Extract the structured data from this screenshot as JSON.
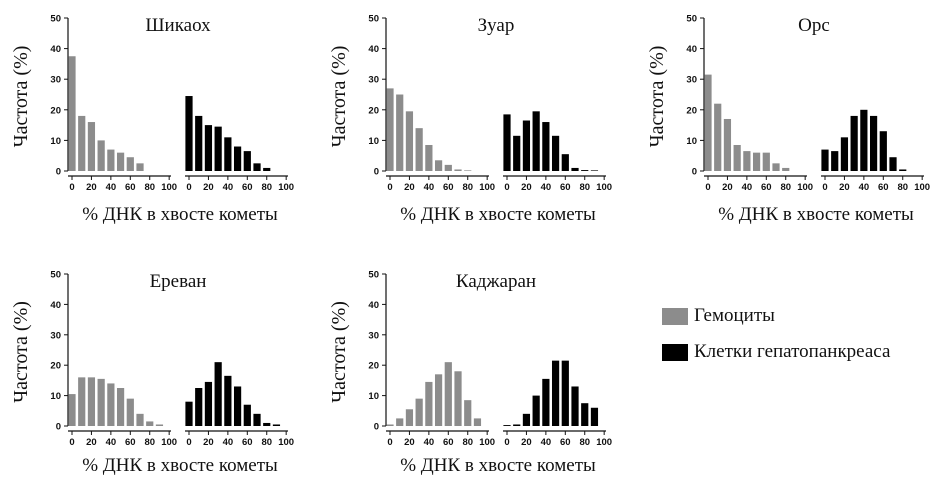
{
  "legend": {
    "items": [
      {
        "label": "Гемоциты",
        "color": "#8c8c8c"
      },
      {
        "label": "Клетки гепатопанкреаса",
        "color": "#000000"
      }
    ]
  },
  "chart_data": [
    {
      "type": "bar",
      "title": "Шикаох",
      "xlabel": "% ДНК в хвосте кометы",
      "ylabel": "Частота (%)",
      "ylim": [
        0,
        50
      ],
      "yticks": [
        0,
        10,
        20,
        30,
        40,
        50
      ],
      "categories": [
        "0",
        "10",
        "20",
        "30",
        "40",
        "50",
        "60",
        "70",
        "80",
        "90",
        "100"
      ],
      "xticks": [
        "0",
        "20",
        "40",
        "60",
        "80",
        "100"
      ],
      "series": [
        {
          "name": "Гемоциты",
          "color": "#8c8c8c",
          "values": [
            37.5,
            18,
            16,
            10,
            7,
            6,
            4.5,
            2.5,
            0,
            0,
            0
          ]
        },
        {
          "name": "Клетки гепатопанкреаса",
          "color": "#000000",
          "values": [
            24.5,
            18,
            15,
            14.5,
            11,
            8,
            6.5,
            2.5,
            1,
            0,
            0
          ]
        }
      ]
    },
    {
      "type": "bar",
      "title": "Зуар",
      "xlabel": "% ДНК в хвосте кометы",
      "ylabel": "Частота (%)",
      "ylim": [
        0,
        50
      ],
      "yticks": [
        0,
        10,
        20,
        30,
        40,
        50
      ],
      "categories": [
        "0",
        "10",
        "20",
        "30",
        "40",
        "50",
        "60",
        "70",
        "80",
        "90",
        "100"
      ],
      "xticks": [
        "0",
        "20",
        "40",
        "60",
        "80",
        "100"
      ],
      "series": [
        {
          "name": "Гемоциты",
          "color": "#8c8c8c",
          "values": [
            27,
            25,
            19.5,
            14,
            8.5,
            3.5,
            2,
            0.5,
            0.2,
            0,
            0
          ]
        },
        {
          "name": "Клетки гепатопанкреаса",
          "color": "#000000",
          "values": [
            18.5,
            11.5,
            16.5,
            19.5,
            16,
            11.5,
            5.5,
            1,
            0.3,
            0.2,
            0
          ]
        }
      ]
    },
    {
      "type": "bar",
      "title": "Орс",
      "xlabel": "% ДНК в хвосте кометы",
      "ylabel": "Частота (%)",
      "ylim": [
        0,
        50
      ],
      "yticks": [
        0,
        10,
        20,
        30,
        40,
        50
      ],
      "categories": [
        "0",
        "10",
        "20",
        "30",
        "40",
        "50",
        "60",
        "70",
        "80",
        "90",
        "100"
      ],
      "xticks": [
        "0",
        "20",
        "40",
        "60",
        "80",
        "100"
      ],
      "series": [
        {
          "name": "Гемоциты",
          "color": "#8c8c8c",
          "values": [
            31.5,
            22,
            17,
            8.5,
            6.5,
            6,
            6,
            2.5,
            1,
            0,
            0
          ]
        },
        {
          "name": "Клетки гепатопанкреаса",
          "color": "#000000",
          "values": [
            7,
            6.5,
            11,
            18,
            20,
            18,
            13,
            4.5,
            0.5,
            0,
            0
          ]
        }
      ]
    },
    {
      "type": "bar",
      "title": "Ереван",
      "xlabel": "% ДНК в хвосте кометы",
      "ylabel": "Частота (%)",
      "ylim": [
        0,
        50
      ],
      "yticks": [
        0,
        10,
        20,
        30,
        40,
        50
      ],
      "categories": [
        "0",
        "10",
        "20",
        "30",
        "40",
        "50",
        "60",
        "70",
        "80",
        "90",
        "100"
      ],
      "xticks": [
        "0",
        "20",
        "40",
        "60",
        "80",
        "100"
      ],
      "series": [
        {
          "name": "Гемоциты",
          "color": "#8c8c8c",
          "values": [
            10.5,
            16,
            16,
            15.5,
            14,
            12.5,
            9,
            4,
            1.5,
            0.5,
            0
          ]
        },
        {
          "name": "Клетки гепатопанкреаса",
          "color": "#000000",
          "values": [
            8,
            12.5,
            14.5,
            21,
            16.5,
            13,
            7,
            4,
            1,
            0.5,
            0
          ]
        }
      ]
    },
    {
      "type": "bar",
      "title": "Каджаран",
      "xlabel": "% ДНК в хвосте кометы",
      "ylabel": "Частота (%)",
      "ylim": [
        0,
        50
      ],
      "yticks": [
        0,
        10,
        20,
        30,
        40,
        50
      ],
      "categories": [
        "0",
        "10",
        "20",
        "30",
        "40",
        "50",
        "60",
        "70",
        "80",
        "90",
        "100"
      ],
      "xticks": [
        "0",
        "20",
        "40",
        "60",
        "80",
        "100"
      ],
      "series": [
        {
          "name": "Гемоциты",
          "color": "#8c8c8c",
          "values": [
            0.5,
            2.5,
            5.5,
            9,
            14.5,
            17,
            21,
            18,
            8.5,
            2.5,
            0
          ]
        },
        {
          "name": "Клетки гепатопанкреаса",
          "color": "#000000",
          "values": [
            0.3,
            0.5,
            4,
            10,
            15.5,
            21.5,
            21.5,
            13,
            7.5,
            6,
            0
          ]
        }
      ]
    }
  ]
}
